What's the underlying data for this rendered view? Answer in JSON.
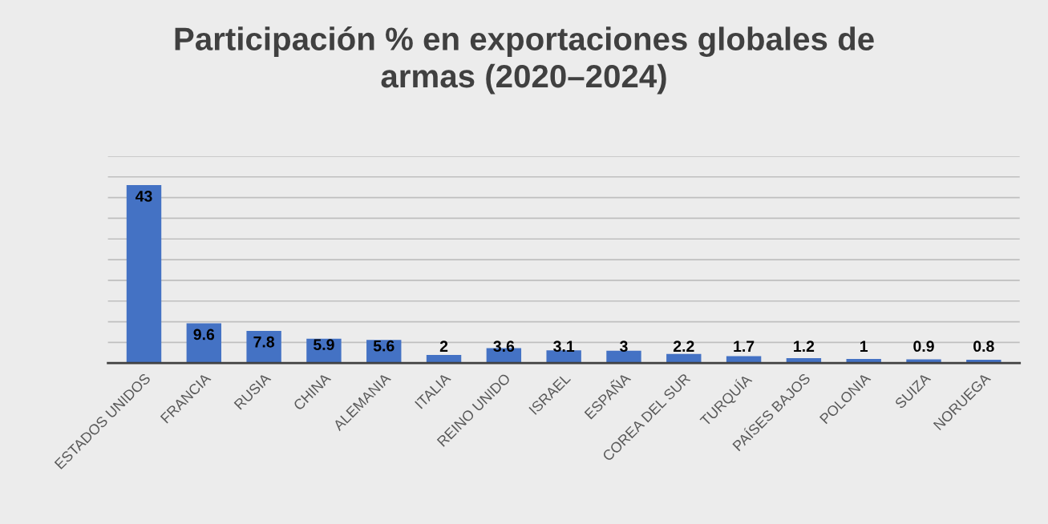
{
  "chart_data": {
    "type": "bar",
    "title": "Participación % en exportaciones globales de\narmas (2020–2024)",
    "categories": [
      "ESTADOS UNIDOS",
      "FRANCIA",
      "RUSIA",
      "CHINA",
      "ALEMANIA",
      "ITALIA",
      "REINO UNIDO",
      "ISRAEL",
      "ESPAÑA",
      "COREA DEL SUR",
      "TURQUÍA",
      "PAÍSES BAJOS",
      "POLONIA",
      "SUIZA",
      "NORUEGA"
    ],
    "values": [
      43,
      9.6,
      7.8,
      5.9,
      5.6,
      2,
      3.6,
      3.1,
      3,
      2.2,
      1.7,
      1.2,
      1,
      0.9,
      0.8
    ],
    "color": "#4472c4",
    "data_labels": true,
    "grid": "y",
    "tick_labels": "x",
    "ylim": [
      0,
      50
    ],
    "yticks": [
      {
        "value": 0,
        "label": null
      },
      {
        "value": 5,
        "label": null
      },
      {
        "value": 10,
        "label": null
      },
      {
        "value": 15,
        "label": null
      },
      {
        "value": 20,
        "label": null
      },
      {
        "value": 25,
        "label": null
      },
      {
        "value": 30,
        "label": null
      },
      {
        "value": 35,
        "label": null
      },
      {
        "value": 40,
        "label": null
      },
      {
        "value": 45,
        "label": null
      },
      {
        "value": 50,
        "label": null
      }
    ]
  }
}
